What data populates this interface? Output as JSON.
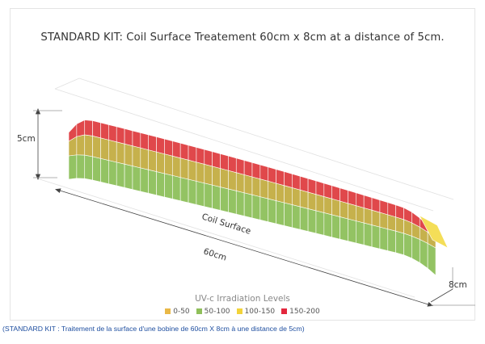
{
  "chart_data": {
    "type": "3d-surface",
    "title": "STANDARD KIT: Coil Surface Treatement 60cm x 8cm at a distance of 5cm.",
    "dimension_labels": {
      "height": "5cm",
      "length": "60cm",
      "width": "8cm"
    },
    "surface_label": "Coil Surface",
    "legend_title": "UV-c Irradiation Levels",
    "legend": [
      {
        "label": "0-50",
        "color": "#e9b847"
      },
      {
        "label": "50-100",
        "color": "#8fbf5a"
      },
      {
        "label": "100-150",
        "color": "#f2d33a"
      },
      {
        "label": "150-200",
        "color": "#e3273d"
      }
    ],
    "colors": {
      "low": "#93c363",
      "mid": "#c6b14c",
      "high": "#e0484b",
      "edge": "#f4de58"
    }
  },
  "caption": "(STANDARD KIT : Traitement de la surface d'une bobine de 60cm X 8cm à une distance de 5cm)"
}
